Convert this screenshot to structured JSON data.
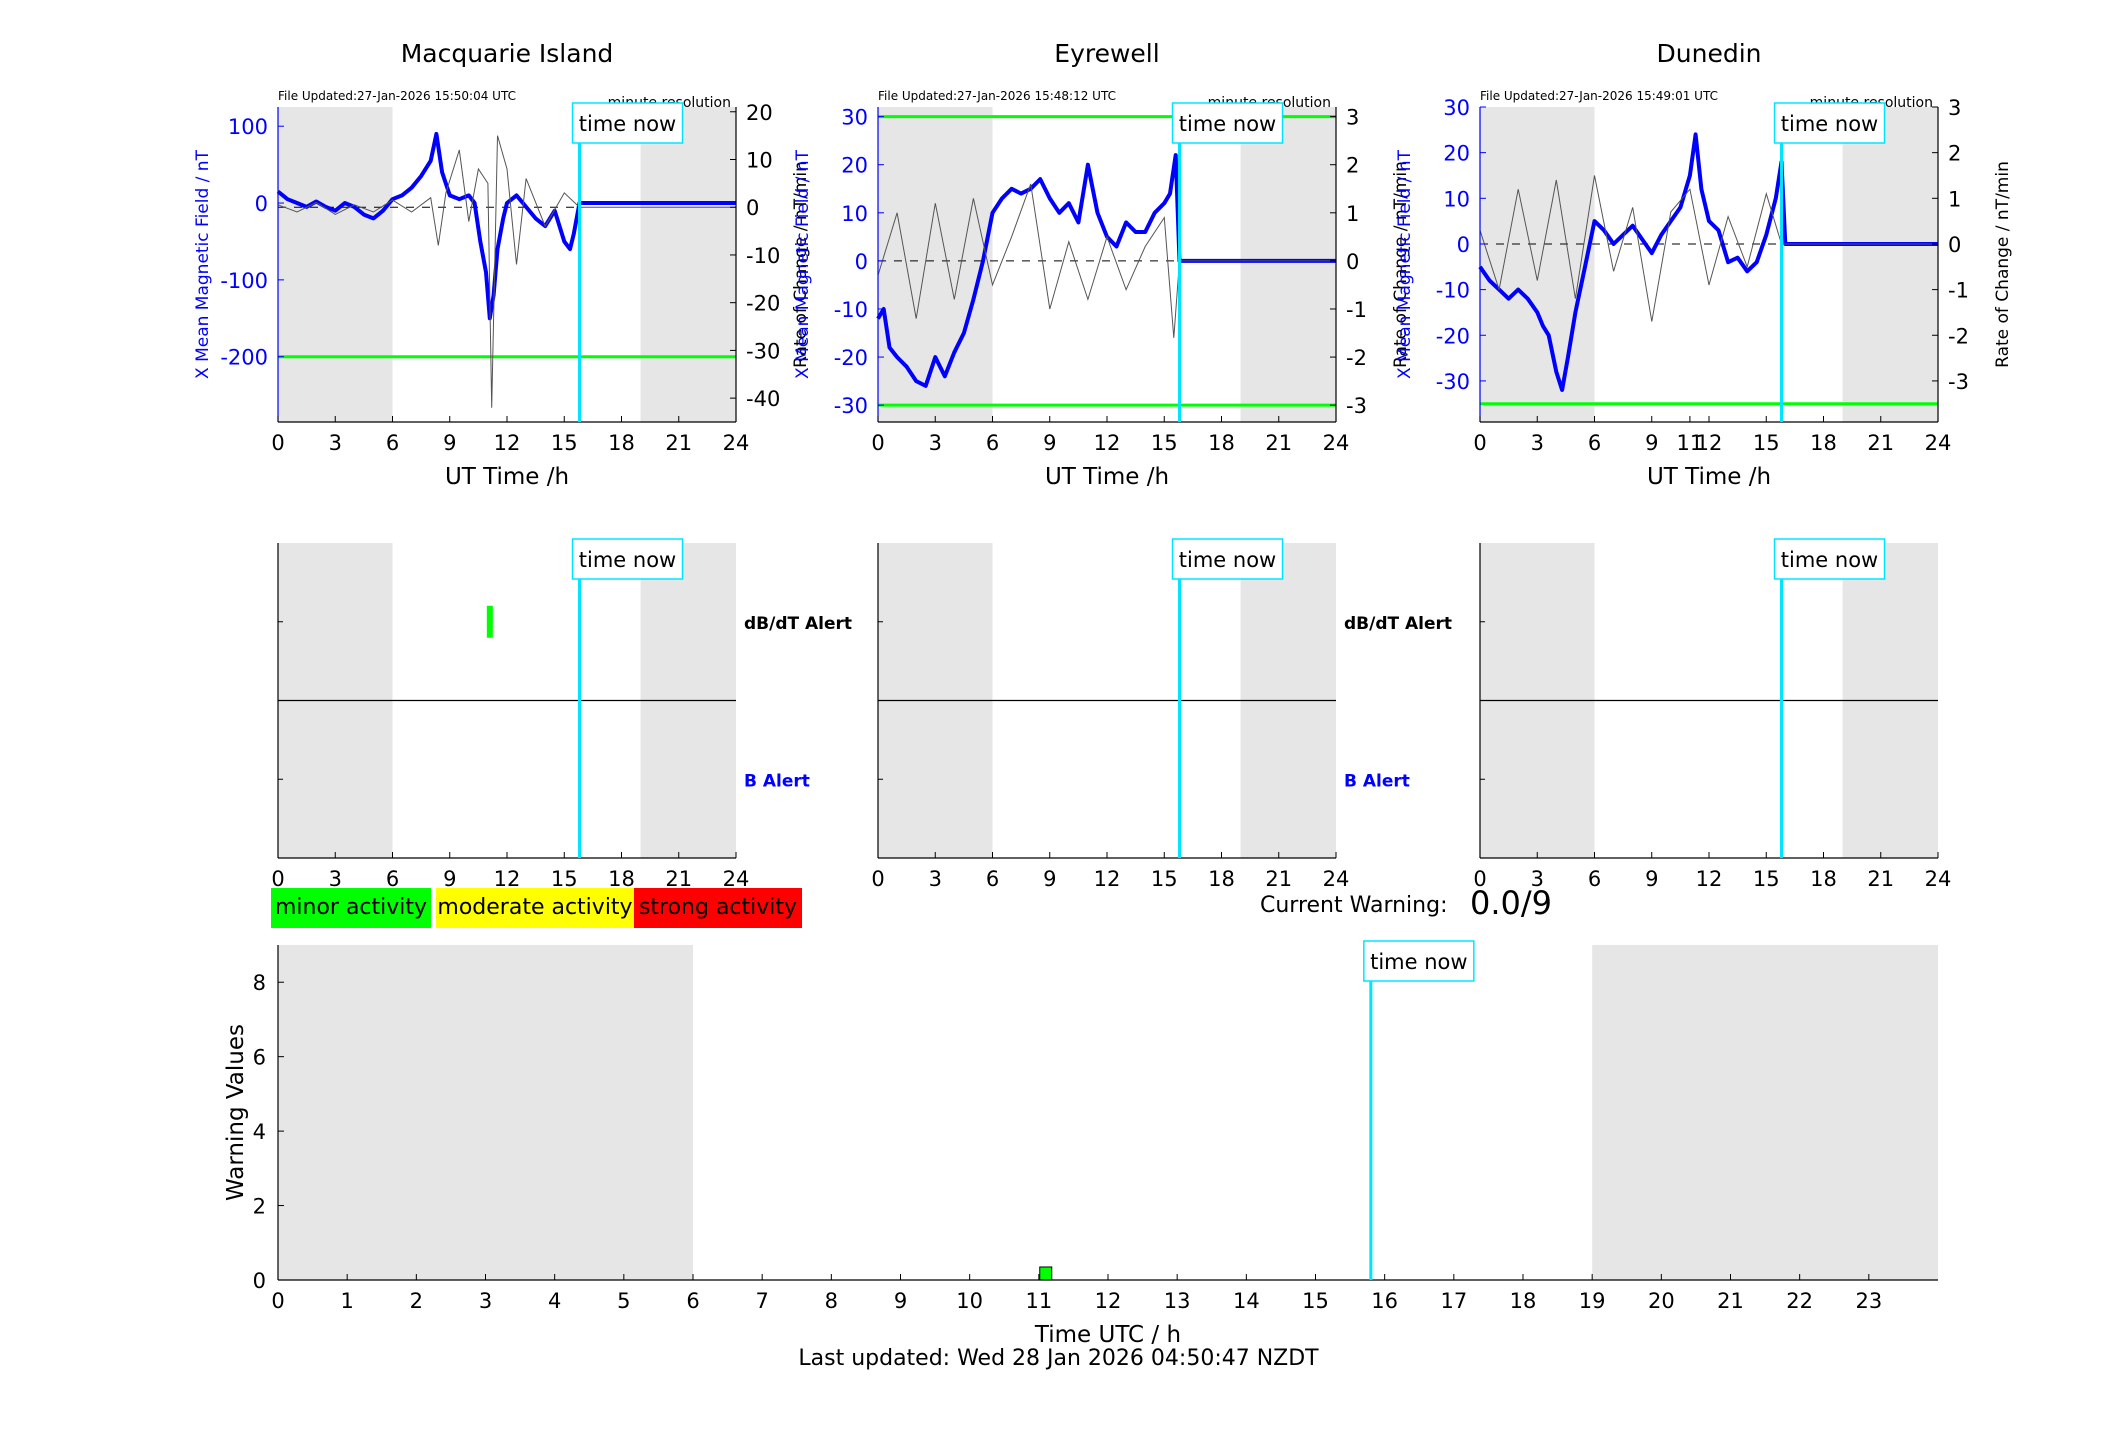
{
  "colors": {
    "field": "#0000ff",
    "rate": "#000000",
    "threshold": "#00ff00",
    "timeNow": "#00e5ff",
    "night": "#e6e6e6",
    "minor": "#00ff00",
    "moderate": "#ffff00",
    "strong": "#ff0000"
  },
  "chart_data": [
    {
      "type": "line",
      "title": "Macquarie Island",
      "file_updated": "File Updated:27-Jan-2026 15:50:04 UTC",
      "resolution": "minute resolution",
      "xlabel": "UT Time /h",
      "ylabel": "X Mean Magnetic Field / nT",
      "y2label": "Rate of Change / nT/min",
      "xlim": [
        0,
        24
      ],
      "xticks": [
        0,
        3,
        6,
        9,
        12,
        15,
        18,
        21,
        24
      ],
      "ylim": [
        -285,
        125
      ],
      "yticks": [
        100,
        0,
        -100,
        -200
      ],
      "y2lim": [
        -45,
        21
      ],
      "y2ticks": [
        20,
        10,
        0,
        -10,
        -20,
        -30,
        -40
      ],
      "threshold_lines": [
        -200
      ],
      "time_now": 15.8,
      "time_now_label": "time now",
      "night_bands": [
        [
          0,
          6
        ],
        [
          19,
          24
        ]
      ],
      "series": [
        {
          "axis": "left",
          "x": [
            0,
            0.5,
            1,
            1.5,
            2,
            2.5,
            3,
            3.5,
            4,
            4.5,
            5,
            5.5,
            6,
            6.5,
            7,
            7.5,
            8,
            8.3,
            8.6,
            9,
            9.5,
            10,
            10.3,
            10.6,
            10.9,
            11.1,
            11.3,
            11.5,
            11.8,
            12,
            12.5,
            13,
            13.5,
            14,
            14.5,
            15,
            15.3,
            15.5,
            15.8,
            16,
            24
          ],
          "y": [
            15,
            5,
            0,
            -5,
            2,
            -5,
            -10,
            0,
            -5,
            -15,
            -20,
            -10,
            5,
            10,
            20,
            35,
            55,
            90,
            40,
            10,
            5,
            10,
            0,
            -50,
            -90,
            -150,
            -120,
            -60,
            -20,
            0,
            10,
            -5,
            -20,
            -30,
            -10,
            -50,
            -60,
            -40,
            0,
            0,
            0
          ]
        },
        {
          "axis": "right",
          "x": [
            0,
            1,
            2,
            3,
            4,
            5,
            6,
            7,
            8,
            8.4,
            8.8,
            9.5,
            10,
            10.5,
            11,
            11.2,
            11.5,
            12,
            12.5,
            13,
            14,
            15,
            15.8,
            16,
            24
          ],
          "y": [
            0.5,
            -1,
            1,
            -1.5,
            0.5,
            -1,
            1.5,
            -1,
            2,
            -8,
            3,
            12,
            -3,
            8,
            5,
            -42,
            15,
            8,
            -12,
            6,
            -4,
            3,
            0,
            0,
            0
          ]
        }
      ]
    },
    {
      "type": "line",
      "title": "Eyrewell",
      "file_updated": "File Updated:27-Jan-2026 15:48:12 UTC",
      "resolution": "minute resolution",
      "xlabel": "UT Time /h",
      "ylabel": "X Mean Magnetic Field / nT",
      "y2label": "Rate of Change / nT/min",
      "xlim": [
        0,
        24
      ],
      "xticks": [
        0,
        3,
        6,
        9,
        12,
        15,
        18,
        21,
        24
      ],
      "ylim": [
        -33.5,
        32
      ],
      "yticks": [
        30,
        20,
        10,
        0,
        -10,
        -20,
        -30
      ],
      "y2lim": [
        -3.35,
        3.2
      ],
      "y2ticks": [
        3,
        2,
        1,
        0,
        -1,
        -2,
        -3
      ],
      "threshold_lines": [
        30,
        -30
      ],
      "time_now": 15.8,
      "time_now_label": "time now",
      "night_bands": [
        [
          0,
          6
        ],
        [
          19,
          24
        ]
      ],
      "series": [
        {
          "axis": "left",
          "x": [
            0,
            0.3,
            0.6,
            1,
            1.5,
            2,
            2.5,
            3,
            3.5,
            4,
            4.5,
            5,
            5.5,
            6,
            6.5,
            7,
            7.5,
            8,
            8.5,
            9,
            9.5,
            10,
            10.5,
            11,
            11.5,
            12,
            12.5,
            13,
            13.5,
            14,
            14.5,
            15,
            15.3,
            15.6,
            15.8,
            16,
            24
          ],
          "y": [
            -12,
            -10,
            -18,
            -20,
            -22,
            -25,
            -26,
            -20,
            -24,
            -19,
            -15,
            -8,
            0,
            10,
            13,
            15,
            14,
            15,
            17,
            13,
            10,
            12,
            8,
            20,
            10,
            5,
            3,
            8,
            6,
            6,
            10,
            12,
            14,
            22,
            0,
            0,
            0
          ]
        },
        {
          "axis": "right",
          "x": [
            0,
            1,
            2,
            3,
            4,
            5,
            6,
            7,
            8,
            9,
            10,
            11,
            12,
            13,
            14,
            15,
            15.5,
            15.8,
            16,
            24
          ],
          "y": [
            -0.3,
            1,
            -1.2,
            1.2,
            -0.8,
            1.3,
            -0.5,
            0.5,
            1.6,
            -1,
            0.4,
            -0.8,
            0.5,
            -0.6,
            0.3,
            0.9,
            -1.6,
            0,
            0,
            0
          ]
        }
      ]
    },
    {
      "type": "line",
      "title": "Dunedin",
      "file_updated": "File Updated:27-Jan-2026 15:49:01 UTC",
      "resolution": "minute resolution",
      "xlabel": "UT Time /h",
      "ylabel": "X Mean Magnetic Field / nT",
      "y2label": "Rate of Change / nT/min",
      "xlim": [
        0,
        24
      ],
      "xticks": [
        0,
        3,
        6,
        9,
        11,
        12,
        15,
        18,
        21,
        24
      ],
      "xticklabels": [
        "0",
        "3",
        "6",
        "9",
        "11",
        "12",
        "15",
        "18",
        "21",
        "24"
      ],
      "ylim": [
        -39,
        30
      ],
      "yticks": [
        30,
        20,
        10,
        0,
        -10,
        -20,
        -30
      ],
      "y2lim": [
        -3.9,
        3
      ],
      "y2ticks": [
        3,
        2,
        1,
        0,
        -1,
        -2,
        -3
      ],
      "threshold_lines": [
        -35
      ],
      "time_now": 15.8,
      "time_now_label": "time now",
      "night_bands": [
        [
          0,
          6
        ],
        [
          19,
          24
        ]
      ],
      "series": [
        {
          "axis": "left",
          "x": [
            0,
            0.5,
            1,
            1.5,
            2,
            2.5,
            3,
            3.3,
            3.6,
            4,
            4.3,
            4.6,
            5,
            5.5,
            6,
            6.5,
            7,
            7.5,
            8,
            8.5,
            9,
            9.5,
            10,
            10.5,
            11,
            11.3,
            11.6,
            12,
            12.5,
            13,
            13.5,
            14,
            14.5,
            15,
            15.5,
            15.8,
            16,
            24
          ],
          "y": [
            -5,
            -8,
            -10,
            -12,
            -10,
            -12,
            -15,
            -18,
            -20,
            -28,
            -32,
            -25,
            -15,
            -5,
            5,
            3,
            0,
            2,
            4,
            1,
            -2,
            2,
            5,
            8,
            15,
            24,
            12,
            5,
            3,
            -4,
            -3,
            -6,
            -4,
            2,
            10,
            18,
            0,
            0
          ]
        },
        {
          "axis": "right",
          "x": [
            0,
            1,
            2,
            3,
            4,
            5,
            6,
            7,
            8,
            9,
            10,
            11,
            12,
            13,
            14,
            15,
            15.8,
            16,
            24
          ],
          "y": [
            0.3,
            -1,
            1.2,
            -0.8,
            1.4,
            -1.2,
            1.5,
            -0.6,
            0.8,
            -1.7,
            0.7,
            1.2,
            -0.9,
            0.6,
            -0.5,
            1.1,
            0,
            0,
            0
          ]
        }
      ]
    },
    {
      "type": "alert",
      "title": "Macquarie Island",
      "xlim": [
        0,
        24
      ],
      "xticks": [
        0,
        3,
        6,
        9,
        12,
        15,
        18,
        21,
        24
      ],
      "rows": [
        "dB/dT Alert",
        "B Alert"
      ],
      "events": [
        {
          "row": "dB/dT Alert",
          "x": 11.1,
          "level": "minor"
        }
      ],
      "time_now": 15.8,
      "time_now_label": "time now",
      "night_bands": [
        [
          0,
          6
        ],
        [
          19,
          24
        ]
      ]
    },
    {
      "type": "alert",
      "title": "Eyrewell",
      "xlim": [
        0,
        24
      ],
      "xticks": [
        0,
        3,
        6,
        9,
        12,
        15,
        18,
        21,
        24
      ],
      "rows": [
        "dB/dT Alert",
        "B Alert"
      ],
      "events": [],
      "time_now": 15.8,
      "time_now_label": "time now",
      "night_bands": [
        [
          0,
          6
        ],
        [
          19,
          24
        ]
      ]
    },
    {
      "type": "alert",
      "title": "Dunedin",
      "xlim": [
        0,
        24
      ],
      "xticks": [
        0,
        3,
        6,
        9,
        12,
        15,
        18,
        21,
        24
      ],
      "rows": [],
      "events": [],
      "time_now": 15.8,
      "time_now_label": "time now",
      "night_bands": [
        [
          0,
          6
        ],
        [
          19,
          24
        ]
      ]
    },
    {
      "type": "bar",
      "xlabel": "Time UTC / h",
      "ylabel": "Warning Values",
      "xlim": [
        0,
        24
      ],
      "xticks": [
        0,
        1,
        2,
        3,
        4,
        5,
        6,
        7,
        8,
        9,
        10,
        11,
        12,
        13,
        14,
        15,
        16,
        17,
        18,
        19,
        20,
        21,
        22,
        23
      ],
      "ylim": [
        0,
        9
      ],
      "yticks": [
        0,
        2,
        4,
        6,
        8
      ],
      "bars": [
        {
          "x": 11.1,
          "value": 0.35,
          "level": "minor"
        }
      ],
      "time_now": 15.8,
      "time_now_label": "time now",
      "night_bands": [
        [
          0,
          6
        ],
        [
          19,
          24
        ]
      ]
    }
  ],
  "legend": {
    "minor": "minor activity",
    "moderate": "moderate activity",
    "strong": "strong activity"
  },
  "current_warning": {
    "label": "Current Warning:",
    "value": "0.0/9"
  },
  "footer": {
    "last_updated": "Last updated: Wed 28 Jan 2026 04:50:47 NZDT"
  }
}
